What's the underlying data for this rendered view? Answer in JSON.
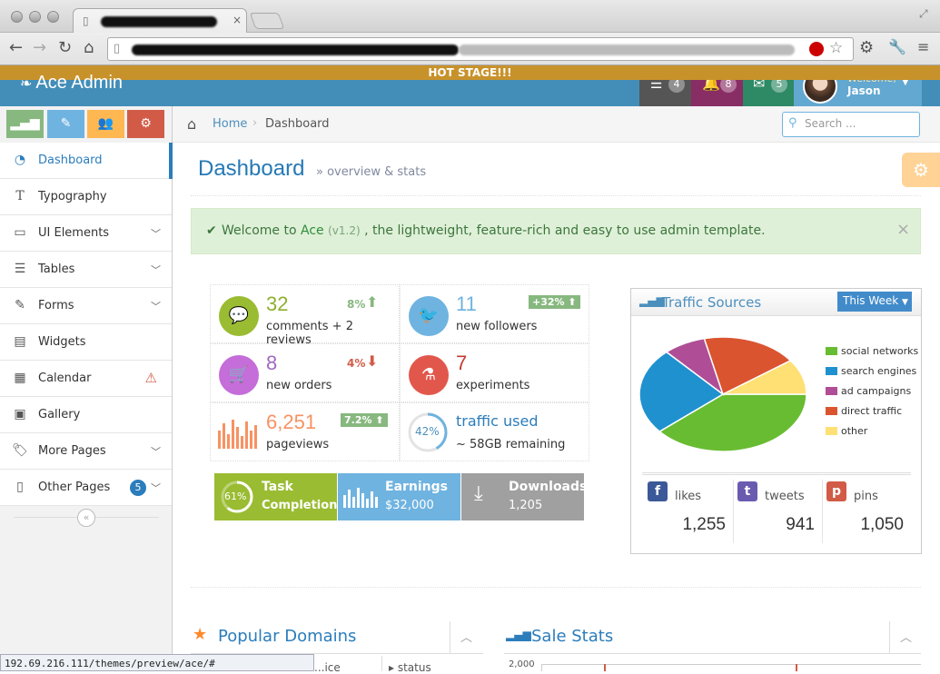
{
  "browser": {
    "nav": {
      "back": "←",
      "forward": "→",
      "reload": "↻",
      "home": "⌂"
    }
  },
  "status_url": "192.69.216.111/themes/preview/ace/#",
  "navbar": {
    "banner": "HOT STAGE!!!",
    "brand": "Ace Admin",
    "tasks_count": "4",
    "notifications_count": "8",
    "messages_count": "5",
    "welcome": "Welcome,",
    "user": "Jason",
    "colors": {
      "tasks": "#555555",
      "notifications": "#892e65",
      "messages": "#2e8965",
      "user": "#62a8d1"
    }
  },
  "shortcuts": [
    {
      "icon": "signal-icon",
      "color": "#87b87f"
    },
    {
      "icon": "pencil-icon",
      "color": "#6fb3e0"
    },
    {
      "icon": "group-icon",
      "color": "#ffb752"
    },
    {
      "icon": "cogs-icon",
      "color": "#d15b47"
    }
  ],
  "sidebar": {
    "items": [
      {
        "label": "Dashboard",
        "icon": "dashboard-icon"
      },
      {
        "label": "Typography",
        "icon": "text-icon"
      },
      {
        "label": "UI Elements",
        "icon": "desktop-icon"
      },
      {
        "label": "Tables",
        "icon": "list-icon"
      },
      {
        "label": "Forms",
        "icon": "edit-icon"
      },
      {
        "label": "Widgets",
        "icon": "widgets-icon"
      },
      {
        "label": "Calendar",
        "icon": "calendar-icon"
      },
      {
        "label": "Gallery",
        "icon": "picture-icon"
      },
      {
        "label": "More Pages",
        "icon": "tag-icon"
      },
      {
        "label": "Other Pages",
        "icon": "file-icon",
        "badge": "5"
      }
    ]
  },
  "breadcrumb": {
    "home": "Home",
    "current": "Dashboard"
  },
  "search": {
    "placeholder": "Search ..."
  },
  "page": {
    "title": "Dashboard",
    "subtitle": "» overview & stats"
  },
  "alert": {
    "text_before": "Welcome to ",
    "brand": "Ace",
    "version": "(v1.2)",
    "text_after": ", the lightweight, feature-rich and easy to use admin template.",
    "close": "×"
  },
  "stats": {
    "comments": {
      "value": "32",
      "label": "comments + 2 reviews",
      "pct": "8%"
    },
    "followers": {
      "value": "11",
      "label": "new followers",
      "badge": "+32%"
    },
    "orders": {
      "value": "8",
      "label": "new orders",
      "pct": "4%"
    },
    "experiments": {
      "value": "7",
      "label": "experiments"
    },
    "pageviews": {
      "value": "6,251",
      "label": "pageviews",
      "badge": "7.2%"
    },
    "traffic": {
      "value": "traffic used",
      "label": "~ 58GB remaining",
      "pct": "42%",
      "fraction": 0.42
    }
  },
  "buttons": {
    "task": {
      "pct": "61%",
      "line1": "Task",
      "line2": "Completion",
      "fraction": 0.61
    },
    "earnings": {
      "line1": "Earnings",
      "line2": "$32,000"
    },
    "downloads": {
      "line1": "Downloads",
      "line2": "1,205"
    }
  },
  "traffic_widget": {
    "title": "Traffic Sources",
    "period": "This Week",
    "legend": [
      "social networks",
      "search engines",
      "ad campaigns",
      "direct traffic",
      "other"
    ],
    "social": {
      "likes": {
        "label": "likes",
        "value": "1,255"
      },
      "tweets": {
        "label": "tweets",
        "value": "941"
      },
      "pins": {
        "label": "pins",
        "value": "1,050"
      }
    }
  },
  "chart_data": {
    "type": "pie",
    "categories": [
      "social networks",
      "search engines",
      "ad campaigns",
      "direct traffic",
      "other"
    ],
    "values": [
      38.7,
      24.5,
      8.2,
      18.6,
      10
    ],
    "colors": [
      "#68bc31",
      "#2091cf",
      "#af4e96",
      "#da5430",
      "#fee074"
    ],
    "legend_position": "right"
  },
  "widgets": {
    "popular": "Popular Domains",
    "sale": "Sale Stats",
    "sale_tick": "2,000",
    "partial1": "...ice",
    "partial2": "status"
  }
}
